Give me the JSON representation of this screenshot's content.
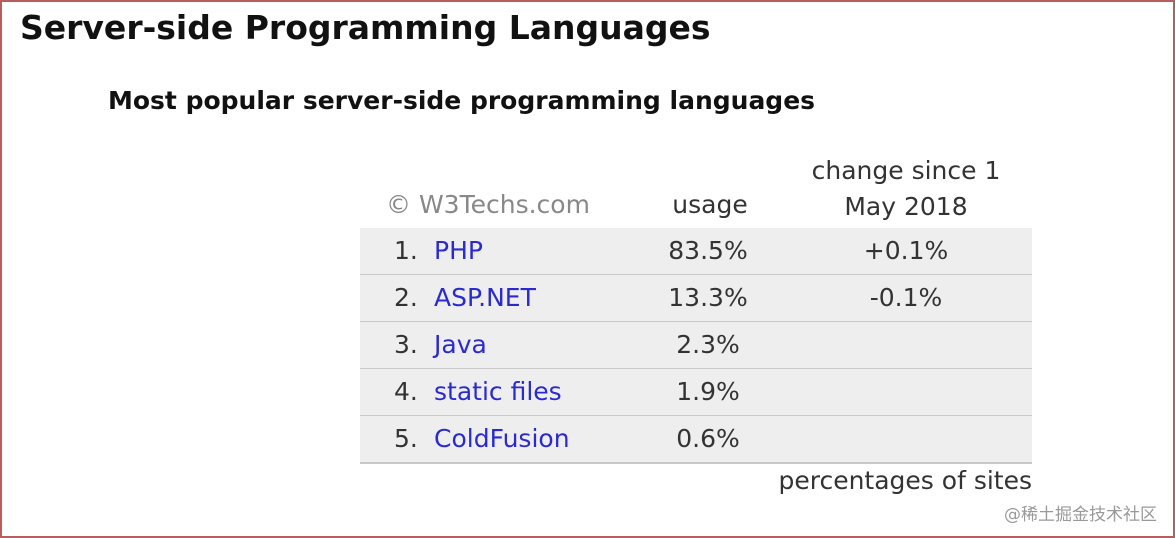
{
  "header": {
    "title": "Server-side Programming Languages",
    "subtitle": "Most popular server-side programming languages"
  },
  "table": {
    "copyright": "© W3Techs.com",
    "columns": [
      "usage",
      "change since 1 May 2018"
    ],
    "rows": [
      {
        "rank": "1.",
        "name": "PHP",
        "usage": "83.5%",
        "change": "+0.1%"
      },
      {
        "rank": "2.",
        "name": "ASP.NET",
        "usage": "13.3%",
        "change": "-0.1%"
      },
      {
        "rank": "3.",
        "name": "Java",
        "usage": "2.3%"
      },
      {
        "rank": "4.",
        "name": "static files",
        "usage": "1.9%"
      },
      {
        "rank": "5.",
        "name": "ColdFusion",
        "usage": "0.6%"
      }
    ],
    "footnote": "percentages of sites"
  },
  "watermark": "@稀土掘金技术社区"
}
